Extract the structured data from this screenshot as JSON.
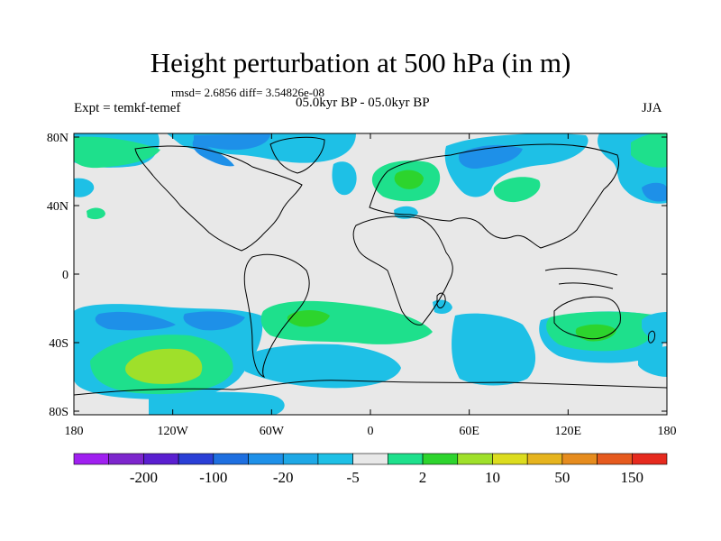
{
  "title": "Height perturbation at 500 hPa (in m)",
  "stats": "rmsd= 2.6856 diff= 3.54826e-08",
  "experiment": "Expt = temkf-temef",
  "period": "05.0kyr BP - 05.0kyr BP",
  "season": "JJA",
  "lat_ticks": [
    "80N",
    "40N",
    "0",
    "40S",
    "80S"
  ],
  "lon_ticks": [
    "180",
    "120W",
    "60W",
    "0",
    "60E",
    "120E",
    "180"
  ],
  "colorbar": {
    "colors": [
      "#a020f0",
      "#7d26cd",
      "#5a1fd0",
      "#2a3fd6",
      "#1e6fe0",
      "#1e90e8",
      "#1ea8e6",
      "#1ec0e6",
      "#e8e8e8",
      "#1ee08c",
      "#2dd42d",
      "#9fe02a",
      "#dcdc1e",
      "#e6b41e",
      "#e68c1e",
      "#e65a1e",
      "#e62a1e"
    ],
    "labels": [
      "-200",
      "-100",
      "-20",
      "-5",
      "2",
      "10",
      "50",
      "150"
    ],
    "label_after_box": [
      1,
      3,
      5,
      7,
      9,
      11,
      13,
      15
    ]
  },
  "contour_colors": {
    "background": "#e8e8e8",
    "light_blue": "#1ec0e6",
    "mid_blue": "#1e90e8",
    "dark_blue": "#1e6fe0",
    "light_green": "#1ee08c",
    "green": "#2dd42d",
    "yellow_green": "#9fe02a"
  }
}
